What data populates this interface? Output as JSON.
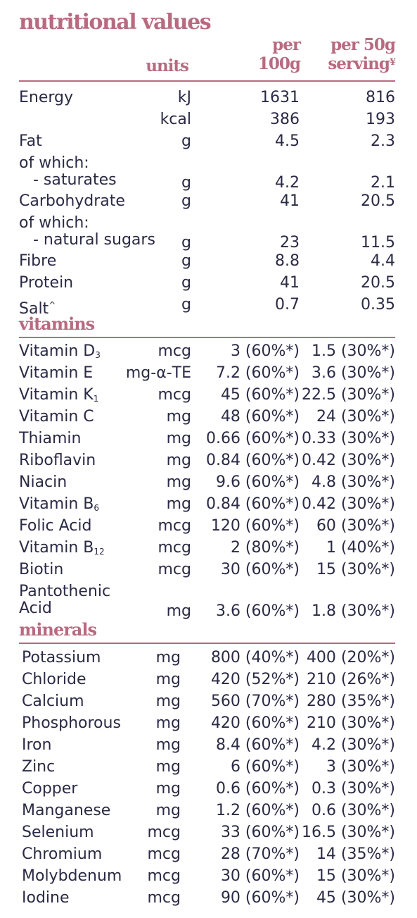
{
  "title": "nutritional values",
  "headers": {
    "units": "units",
    "per100_line1": "per",
    "per100_line2": "100g",
    "per50_line1": "per 50g",
    "per50_line2": "serving",
    "per50_mark": "¥"
  },
  "nutrition": [
    {
      "name": "Energy",
      "unit": "kJ",
      "per100": "1631",
      "per50": "816"
    },
    {
      "name": "",
      "unit": "kcal",
      "per100": "386",
      "per50": "193"
    },
    {
      "name": "Fat",
      "unit": "g",
      "per100": "4.5",
      "per50": "2.3"
    },
    {
      "name_line1": "of which:",
      "name_line2": "- saturates",
      "unit": "g",
      "per100": "4.2",
      "per50": "2.1"
    },
    {
      "name": "Carbohydrate",
      "unit": "g",
      "per100": "41",
      "per50": "20.5"
    },
    {
      "name_line1": "of which:",
      "name_line2": "- natural sugars",
      "unit": "g",
      "per100": "23",
      "per50": "11.5"
    },
    {
      "name": "Fibre",
      "unit": "g",
      "per100": "8.8",
      "per50": "4.4"
    },
    {
      "name": "Protein",
      "unit": "g",
      "per100": "41",
      "per50": "20.5"
    },
    {
      "name": "Salt",
      "name_mark": "^",
      "unit": "g",
      "per100": "0.7",
      "per50": "0.35"
    }
  ],
  "vitamins_title": "vitamins",
  "vitamins": [
    {
      "name": "Vitamin D",
      "sub": "3",
      "unit": "mcg",
      "per100": "3 (60%*)",
      "per50": "1.5 (30%*)"
    },
    {
      "name": "Vitamin E",
      "unit": "mg-α-TE",
      "per100": "7.2 (60%*)",
      "per50": "3.6 (30%*)"
    },
    {
      "name": "Vitamin K",
      "sub": "1",
      "unit": "mcg",
      "per100": "45 (60%*)",
      "per50": "22.5 (30%*)"
    },
    {
      "name": "Vitamin C",
      "unit": "mg",
      "per100": "48 (60%*)",
      "per50": "24 (30%*)"
    },
    {
      "name": "Thiamin",
      "unit": "mg",
      "per100": "0.66 (60%*)",
      "per50": "0.33 (30%*)"
    },
    {
      "name": "Riboflavin",
      "unit": "mg",
      "per100": "0.84 (60%*)",
      "per50": "0.42 (30%*)"
    },
    {
      "name": "Niacin",
      "unit": "mg",
      "per100": "9.6 (60%*)",
      "per50": "4.8 (30%*)"
    },
    {
      "name": "Vitamin B",
      "sub": "6",
      "unit": "mg",
      "per100": "0.84 (60%*)",
      "per50": "0.42 (30%*)"
    },
    {
      "name": "Folic Acid",
      "unit": "mcg",
      "per100": "120 (60%*)",
      "per50": "60 (30%*)"
    },
    {
      "name": "Vitamin B",
      "sub": "12",
      "unit": "mcg",
      "per100": "2 (80%*)",
      "per50": "1 (40%*)"
    },
    {
      "name": "Biotin",
      "unit": "mcg",
      "per100": "30 (60%*)",
      "per50": "15 (30%*)"
    },
    {
      "name_line1": "Pantothenic",
      "name_line2": "Acid",
      "unit": "mg",
      "per100": "3.6 (60%*)",
      "per50": "1.8 (30%*)"
    }
  ],
  "minerals_title": "minerals",
  "minerals": [
    {
      "name": "Potassium",
      "unit": "mg",
      "per100": "800 (40%*)",
      "per50": "400 (20%*)"
    },
    {
      "name": "Chloride",
      "unit": "mg",
      "per100": "420 (52%*)",
      "per50": "210 (26%*)"
    },
    {
      "name": "Calcium",
      "unit": "mg",
      "per100": "560 (70%*)",
      "per50": "280 (35%*)"
    },
    {
      "name": "Phosphorous",
      "unit": "mg",
      "per100": "420 (60%*)",
      "per50": "210 (30%*)"
    },
    {
      "name": "Iron",
      "unit": "mg",
      "per100": "8.4 (60%*)",
      "per50": "4.2 (30%*)"
    },
    {
      "name": "Zinc",
      "unit": "mg",
      "per100": "6 (60%*)",
      "per50": "3 (30%*)"
    },
    {
      "name": "Copper",
      "unit": "mg",
      "per100": "0.6 (60%*)",
      "per50": "0.3 (30%*)"
    },
    {
      "name": "Manganese",
      "unit": "mg",
      "per100": "1.2 (60%*)",
      "per50": "0.6 (30%*)"
    },
    {
      "name": "Selenium",
      "unit": "mcg",
      "per100": "33 (60%*)",
      "per50": "16.5 (30%*)"
    },
    {
      "name": "Chromium",
      "unit": "mcg",
      "per100": "28 (70%*)",
      "per50": "14 (35%*)"
    },
    {
      "name": "Molybdenum",
      "unit": "mcg",
      "per100": "30 (60%*)",
      "per50": "15 (30%*)"
    },
    {
      "name": "Iodine",
      "unit": "mcg",
      "per100": "90 (60%*)",
      "per50": "45 (30%*)"
    }
  ],
  "colors": {
    "accent": "#b86a80",
    "text": "#2b2a45"
  }
}
